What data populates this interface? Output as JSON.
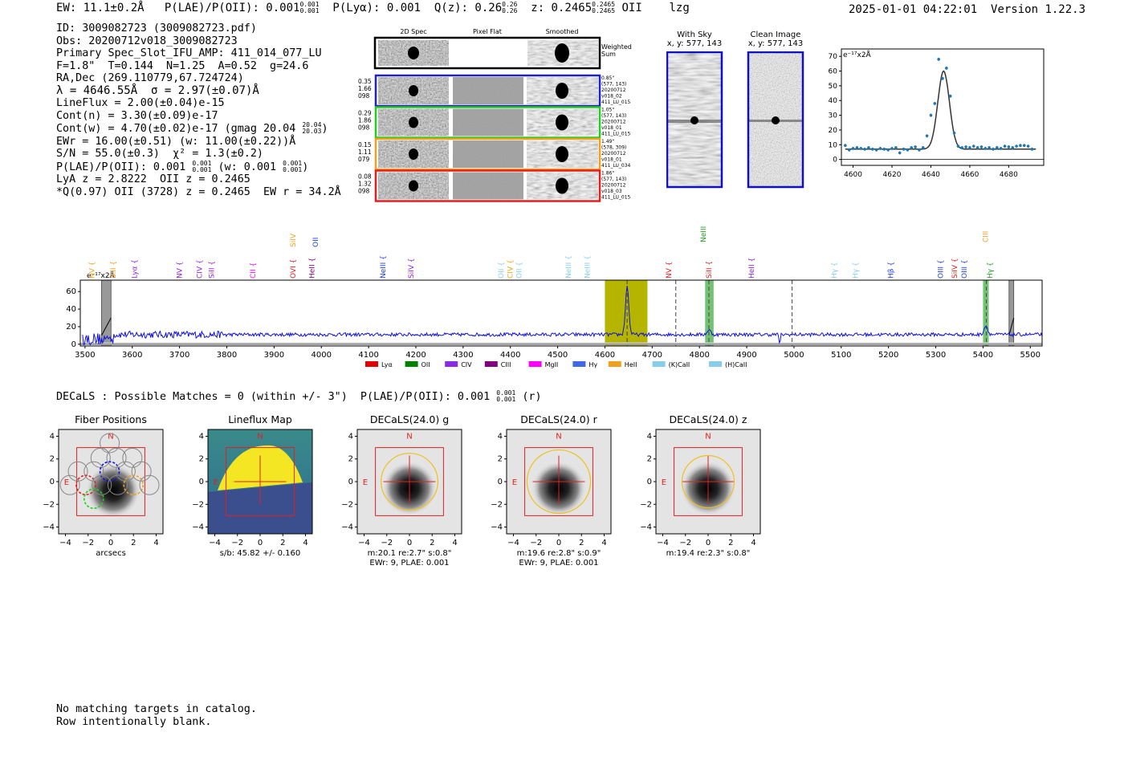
{
  "header": {
    "ew": "EW: 11.1±0.2Å",
    "plae": "P(LAE)/P(OII): 0.001",
    "plae_sup": "0.001",
    "plae_sub": "0.001",
    "plya": "P(Lyα): 0.001",
    "qz": "Q(z): 0.26",
    "qz_sup": "0.26",
    "qz_sub": "0.26",
    "z": "z: 0.2465",
    "z_sup": "0.2465",
    "z_sub": "0.2465",
    "line": "OII",
    "flag": "lzg",
    "timestamp": "2025-01-01 04:22:01",
    "version": "Version 1.22.3"
  },
  "info": {
    "id": "ID: 3009082723 (3009082723.pdf)",
    "obs": "Obs: 20200712v018_3009082723",
    "primary": "Primary Spec_Slot_IFU_AMP: 411_014_077_LU",
    "params": "F=1.8\"  T=0.144  N=1.25  A=0.52  g=24.6",
    "radec": "RA,Dec (269.110779,67.724724)",
    "lambda": "λ = 4646.55Å  σ = 2.97(±0.07)Å",
    "lineflux": "LineFlux = 2.00(±0.04)e-15",
    "contn": "Cont(n) = 3.30(±0.09)e-17",
    "contw": "Cont(w) = 4.70(±0.02)e-17 (gmag 20.04",
    "contw_sup": "20.04",
    "contw_sub": "20.03",
    "contw_end": ")",
    "ewr": "EWr = 16.00(±0.51) (w: 11.00(±0.22))Å",
    "sn": "S/N = 55.0(±0.3)  χ² = 1.3(±0.2)",
    "plae_line": "P(LAE)/P(OII): 0.001",
    "plae_line_sup": "0.001",
    "plae_line_sub": "0.001",
    "plae_line_w": "(w: 0.001",
    "plae_line_w_sup": "0.001",
    "plae_line_w_sub": "0.001",
    "plae_line_end": ")",
    "lya_z": "LyA z = 2.8222  OII z = 0.2465",
    "best": "*Q(0.97) OII (3728) z = 0.2465  EW r = 34.2Å"
  },
  "cutouts": {
    "col_titles": [
      "2D Spec",
      "Pixel Flat",
      "Smoothed"
    ],
    "weighted": "Weighted\nSum",
    "rows": [
      {
        "left": [
          "0.35",
          "1.66",
          "098"
        ],
        "right": [
          "0.85\"",
          "(577, 143)",
          "20200712",
          "v018_02",
          "411_LU_015"
        ],
        "color": "#1f1fcc"
      },
      {
        "left": [
          "0.29",
          "1.86",
          "098"
        ],
        "right": [
          "1.05\"",
          "(577, 143)",
          "20200712",
          "v018_01",
          "411_LU_015"
        ],
        "color": "#22cc22"
      },
      {
        "left": [
          "0.15",
          "1.11",
          "079"
        ],
        "right": [
          "1.49\"",
          "(578, 309)",
          "20200712",
          "v018_01",
          "411_LU_034"
        ],
        "color": "#f0a020"
      },
      {
        "left": [
          "0.08",
          "1.32",
          "098"
        ],
        "right": [
          "1.86\"",
          "(577, 143)",
          "20200712",
          "v018_03",
          "411_LU_015"
        ],
        "color": "#e02020"
      }
    ]
  },
  "sky": {
    "with_sky_title": "With Sky",
    "with_sky_coord": "x, y: 577, 143",
    "clean_title": "Clean Image",
    "clean_coord": "x, y: 577, 143"
  },
  "chart_data": [
    {
      "type": "scatter",
      "id": "zoom",
      "title": "",
      "ylabel": "e⁻¹⁷x2Å",
      "xlim": [
        4594,
        4698
      ],
      "ylim": [
        -4,
        75
      ],
      "xticks": [
        4600,
        4620,
        4640,
        4660,
        4680
      ],
      "yticks": [
        0,
        10,
        20,
        30,
        40,
        50,
        60,
        70
      ],
      "points_x": [
        4596,
        4598,
        4600,
        4602,
        4604,
        4606,
        4608,
        4610,
        4612,
        4614,
        4616,
        4618,
        4620,
        4622,
        4624,
        4626,
        4628,
        4630,
        4632,
        4634,
        4636,
        4638,
        4640,
        4642,
        4644,
        4646,
        4648,
        4650,
        4652,
        4654,
        4656,
        4658,
        4660,
        4662,
        4664,
        4666,
        4668,
        4670,
        4672,
        4674,
        4676,
        4678,
        4680,
        4682,
        4684,
        4686,
        4688,
        4690,
        4692
      ],
      "points_y": [
        9.5,
        6.5,
        7.5,
        8,
        7.5,
        7,
        8,
        7,
        6.5,
        7.5,
        7,
        6.5,
        7.5,
        8,
        4.5,
        7,
        6.5,
        8,
        8.5,
        6.5,
        8,
        16,
        30,
        38,
        68,
        55,
        62,
        43,
        18,
        9,
        8,
        8.5,
        8,
        9,
        8,
        8.5,
        7.5,
        8,
        7,
        8,
        7.5,
        9,
        8.5,
        8,
        9,
        9.5,
        9.5,
        9,
        7
      ],
      "fit_peak": 60,
      "fit_center": 4646.55,
      "fit_sigma": 2.97,
      "fit_cont": 7
    },
    {
      "type": "line",
      "id": "full-spectrum",
      "ylabel": "e⁻¹⁷x2Å",
      "xlim": [
        3490,
        5525
      ],
      "ylim": [
        -2,
        73
      ],
      "xticks": [
        3500,
        3600,
        3700,
        3800,
        3900,
        4000,
        4100,
        4200,
        4300,
        4400,
        4500,
        4600,
        4700,
        4800,
        4900,
        5000,
        5100,
        5200,
        5300,
        5400,
        5500
      ],
      "yticks": [
        0,
        20,
        40,
        60
      ],
      "highlight_band": [
        4600,
        4690
      ],
      "green_bands": [
        [
          4812,
          4830
        ],
        [
          5400,
          5412
        ]
      ],
      "gray_hatched": [
        [
          3535,
          3555
        ],
        [
          5455,
          5465
        ]
      ],
      "dashed_lines": [
        4647,
        4750,
        4820,
        4996,
        5407
      ],
      "line_labels": [
        {
          "x": 3515,
          "name": "NV",
          "color": "#f0a020",
          "row": 2
        },
        {
          "x": 3560,
          "name": "SiII",
          "color": "#f0a020",
          "row": 2
        },
        {
          "x": 3605,
          "name": "Lyα",
          "color": "#9020e0",
          "row": 2
        },
        {
          "x": 3700,
          "name": "NV",
          "color": "#9020e0",
          "row": 2
        },
        {
          "x": 3742,
          "name": "CIV",
          "color": "#9020e0",
          "row": 2
        },
        {
          "x": 3768,
          "name": "SiII",
          "color": "#9020e0",
          "row": 2
        },
        {
          "x": 3855,
          "name": "CII",
          "color": "#ff00ff",
          "row": 2
        },
        {
          "x": 3940,
          "name": "OVI",
          "color": "#e02020",
          "row": 2
        },
        {
          "x": 3940,
          "name": "SiIV",
          "color": "#f0a020",
          "row": 1
        },
        {
          "x": 3980,
          "name": "HeII",
          "color": "#800080",
          "row": 2
        },
        {
          "x": 3988,
          "name": "OII",
          "color": "#2040e0",
          "row": 1
        },
        {
          "x": 4130,
          "name": "NeIII",
          "color": "#2040e0",
          "row": 2
        },
        {
          "x": 4190,
          "name": "SiIV",
          "color": "#9020e0",
          "row": 2
        },
        {
          "x": 4380,
          "name": "OII",
          "color": "#87ceeb",
          "row": 2
        },
        {
          "x": 4400,
          "name": "CIV",
          "color": "#f0a020",
          "row": 2
        },
        {
          "x": 4418,
          "name": "OII",
          "color": "#87ceeb",
          "row": 2
        },
        {
          "x": 4523,
          "name": "NeIII",
          "color": "#87ceeb",
          "row": 2
        },
        {
          "x": 4563,
          "name": "NeIII",
          "color": "#87ceeb",
          "row": 2
        },
        {
          "x": 4735,
          "name": "NV",
          "color": "#e02020",
          "row": 2
        },
        {
          "x": 4808,
          "name": "NeIII",
          "color": "#20a020",
          "row": 0
        },
        {
          "x": 4820,
          "name": "SiII",
          "color": "#e02020",
          "row": 2
        },
        {
          "x": 4910,
          "name": "HeII",
          "color": "#9020e0",
          "row": 2
        },
        {
          "x": 5085,
          "name": "Hγ",
          "color": "#87ceeb",
          "row": 2
        },
        {
          "x": 5130,
          "name": "Hγ",
          "color": "#87ceeb",
          "row": 2
        },
        {
          "x": 5205,
          "name": "Hβ",
          "color": "#2040e0",
          "row": 2
        },
        {
          "x": 5310,
          "name": "OIII",
          "color": "#2040e0",
          "row": 2
        },
        {
          "x": 5340,
          "name": "SiIV",
          "color": "#e02020",
          "row": 2
        },
        {
          "x": 5360,
          "name": "OIII",
          "color": "#2040e0",
          "row": 2
        },
        {
          "x": 5405,
          "name": "CIII",
          "color": "#f0a020",
          "row": 0
        },
        {
          "x": 5415,
          "name": "Hγ",
          "color": "#20a020",
          "row": 2
        }
      ],
      "legend": [
        {
          "name": "Lyα",
          "color": "#e00000"
        },
        {
          "name": "OII",
          "color": "#008000"
        },
        {
          "name": "CIV",
          "color": "#8a2be2"
        },
        {
          "name": "CIII",
          "color": "#800080"
        },
        {
          "name": "MgII",
          "color": "#ff00ff"
        },
        {
          "name": "Hγ",
          "color": "#4169e1"
        },
        {
          "name": "HeII",
          "color": "#f0a020"
        },
        {
          "name": "(K)CaII",
          "color": "#87ceeb"
        },
        {
          "name": "(H)CaII",
          "color": "#87ceeb"
        }
      ],
      "line_center": 4647,
      "line_peak": 66,
      "continuum": 11
    }
  ],
  "decals_line": {
    "text": "DECaLS : Possible Matches = 0 (within +/- 3\")  P(LAE)/P(OII): 0.001",
    "sup": "0.001",
    "sub": "0.001",
    "end": "(r)"
  },
  "panels": [
    {
      "title": "Fiber Positions",
      "caption": [
        "arcsecs"
      ],
      "type": "fibers"
    },
    {
      "title": "Lineflux Map",
      "caption": [
        "s/b: 45.82 +/- 0.160"
      ],
      "type": "lineflux"
    },
    {
      "title": "DECaLS(24.0) g",
      "caption": [
        "m:20.1  re:2.7\"  s:0.8\"",
        "EWr: 9, PLAE: 0.001"
      ],
      "type": "decals",
      "ell_r": 2.5
    },
    {
      "title": "DECaLS(24.0) r",
      "caption": [
        "m:19.6  re:2.8\"  s:0.9\"",
        "EWr: 9, PLAE: 0.001"
      ],
      "type": "decals",
      "ell_r": 2.8
    },
    {
      "title": "DECaLS(24.0) z",
      "caption": [
        "m:19.4  re:2.3\"  s:0.8\""
      ],
      "type": "decals",
      "ell_r": 2.3
    }
  ],
  "panel_axes": {
    "ticks": [
      "−4",
      "−2",
      "0",
      "2",
      "4"
    ],
    "north": "N",
    "east": "E"
  },
  "catalog_note": {
    "line1": "No matching targets in catalog.",
    "line2": "Row intentionally blank."
  }
}
